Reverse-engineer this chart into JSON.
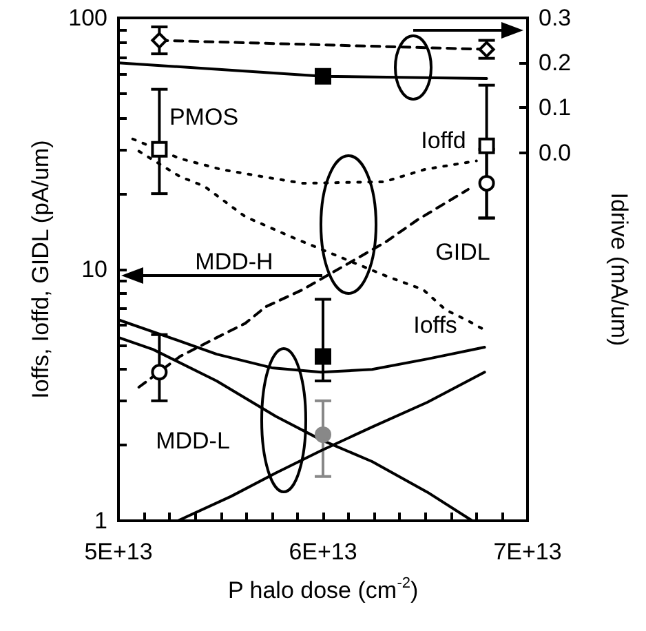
{
  "chart_data": {
    "type": "line",
    "xlabel": "P halo dose (cm$^{-2}$)",
    "ylabel": "Ioffs, Ioffd, GIDL (pA/um)",
    "y2label": "Idrive (mA/um)",
    "xlim": [
      50000000000000.0,
      70000000000000.0
    ],
    "xticks": [
      {
        "value": 50000000000000.0,
        "label": "5E+13"
      },
      {
        "value": 51250000000000.0,
        "label": null
      },
      {
        "value": 52500000000000.0,
        "label": null
      },
      {
        "value": 53750000000000.0,
        "label": null
      },
      {
        "value": 55000000000000.0,
        "label": null
      },
      {
        "value": 56250000000000.0,
        "label": null
      },
      {
        "value": 57500000000000.0,
        "label": null
      },
      {
        "value": 58750000000000.0,
        "label": null
      },
      {
        "value": 60000000000000.0,
        "label": "6E+13"
      },
      {
        "value": 61250000000000.0,
        "label": null
      },
      {
        "value": 62500000000000.0,
        "label": null
      },
      {
        "value": 63750000000000.0,
        "label": null
      },
      {
        "value": 65000000000000.0,
        "label": null
      },
      {
        "value": 66250000000000.0,
        "label": null
      },
      {
        "value": 67500000000000.0,
        "label": null
      },
      {
        "value": 68750000000000.0,
        "label": null
      },
      {
        "value": 70000000000000.0,
        "label": "7E+13"
      }
    ],
    "ylim": [
      1,
      100
    ],
    "yticks": [
      1,
      {
        "value": 2,
        "label": null
      },
      {
        "value": 3,
        "label": null
      },
      {
        "value": 4,
        "label": null
      },
      {
        "value": 5,
        "label": null
      },
      {
        "value": 6,
        "label": null
      },
      {
        "value": 7,
        "label": null
      },
      {
        "value": 8,
        "label": null
      },
      {
        "value": 9,
        "label": null
      },
      10,
      {
        "value": 20,
        "label": null
      },
      {
        "value": 30,
        "label": null
      },
      {
        "value": 40,
        "label": null
      },
      {
        "value": 50,
        "label": null
      },
      {
        "value": 60,
        "label": null
      },
      {
        "value": 70,
        "label": null
      },
      {
        "value": 80,
        "label": null
      },
      {
        "value": 90,
        "label": null
      },
      100
    ],
    "y2lim": [
      -0.82,
      0.3
    ],
    "y2ticks": [
      {
        "value": 0,
        "label": "0.0"
      },
      0.1,
      0.2,
      0.3
    ],
    "log": "y",
    "series": [
      {
        "axis": "y2",
        "color": "#000000",
        "marker": "none",
        "line_style": "dashed",
        "x": [
          52000000000000.0,
          68000000000000.0
        ],
        "values": [
          0.25,
          0.23
        ]
      },
      {
        "type": "scatter",
        "axis": "y2",
        "color": "#000000",
        "marker": "diamond",
        "x": [
          52000000000000.0,
          68000000000000.0
        ],
        "values": [
          0.25,
          0.23
        ],
        "errors": [
          0.03,
          0.02
        ]
      },
      {
        "axis": "y2",
        "color": "#000000",
        "marker": "none",
        "line_style": "solid",
        "x": [
          50000000000000.0,
          60000000000000.0,
          68000000000000.0
        ],
        "values": [
          0.2,
          0.17,
          0.165
        ]
      },
      {
        "axis": "y2",
        "color": "#000000",
        "marker": "square",
        "x": [
          60000000000000.0
        ],
        "values": [
          0.17
        ],
        "errors": [
          0.01
        ]
      },
      {
        "color": "#000000",
        "marker": "none",
        "line_style": "dotted",
        "x": [
          50700000000000.0,
          53000000000000.0,
          55000000000000.0,
          57000000000000.0,
          59000000000000.0,
          63000000000000.0,
          65000000000000.0,
          67500000000000.0
        ],
        "values": [
          33,
          27.6,
          25,
          23.4,
          22,
          22.3,
          25,
          27
        ]
      },
      {
        "color": "#000000",
        "marker": "none",
        "line_style": "dotted",
        "x": [
          51000000000000.0,
          53000000000000.0,
          54200000000000.0,
          56200000000000.0,
          58600000000000.0,
          63100000000000.0,
          64900000000000.0,
          66000000000000.0,
          67000000000000.0,
          67800000000000.0
        ],
        "values": [
          29.5,
          23.4,
          21.4,
          16.2,
          13.3,
          9.4,
          8.3,
          6.9,
          6.3,
          5.8
        ]
      },
      {
        "color": "#000000",
        "marker": "none",
        "line_style": "dashed",
        "x": [
          51000000000000.0,
          53000000000000.0,
          54800000000000.0,
          56200000000000.0,
          57200000000000.0,
          59000000000000.0,
          63100000000000.0,
          64600000000000.0,
          67100000000000.0
        ],
        "values": [
          3.4,
          4.5,
          5.35,
          6.1,
          7.1,
          8.3,
          12.9,
          15.7,
          20.8
        ]
      },
      {
        "type": "scatter",
        "color": "#000000",
        "marker": "square",
        "x": [
          52000000000000.0,
          68000000000000.0
        ],
        "values": [
          30,
          31
        ],
        "errors": [
          [
            20,
            52
          ],
          [
            16,
            54
          ]
        ]
      },
      {
        "type": "scatter",
        "color": "#000000",
        "marker": "circle",
        "x": [
          52000000000000.0,
          68000000000000.0
        ],
        "values": [
          3.9,
          22
        ],
        "errors": [
          [
            3,
            5.5
          ],
          [
            16,
            30
          ]
        ]
      },
      {
        "color": "#000000",
        "marker": "none",
        "line_style": "solid",
        "x": [
          50000000000000.0,
          52100000000000.0,
          54800000000000.0,
          57500000000000.0,
          59900000000000.0,
          62400000000000.0,
          65100000000000.0,
          67900000000000.0
        ],
        "values": [
          6.3,
          5.5,
          4.6,
          4.06,
          3.9,
          4,
          4.4,
          4.9
        ]
      },
      {
        "color": "#000000",
        "marker": "none",
        "line_style": "solid",
        "x": [
          50000000000000.0,
          51700000000000.0,
          54800000000000.0,
          57700000000000.0,
          59900000000000.0,
          62400000000000.0,
          65100000000000.0,
          67300000000000.0
        ],
        "values": [
          5.36,
          4.8,
          3.6,
          2.6,
          2.1,
          1.72,
          1.3,
          1
        ]
      },
      {
        "color": "#000000",
        "marker": "none",
        "line_style": "solid",
        "x": [
          52900000000000.0,
          55500000000000.0,
          57700000000000.0,
          59900000000000.0,
          62400000000000.0,
          65100000000000.0,
          67900000000000.0
        ],
        "values": [
          1,
          1.25,
          1.55,
          1.9,
          2.36,
          2.96,
          3.9
        ]
      },
      {
        "color": "#000000",
        "marker": "square",
        "x": [
          60000000000000.0
        ],
        "values": [
          4.5
        ],
        "errors": [
          [
            3.6,
            7.6
          ]
        ]
      },
      {
        "color": "#888888",
        "marker": "circle",
        "x": [
          60000000000000.0
        ],
        "values": [
          2.2
        ],
        "errors": [
          [
            1.5,
            3
          ]
        ]
      }
    ],
    "annotations": [
      "PMOS",
      "Ioffd",
      "GIDL",
      "Ioffs",
      "MDD-H",
      "MDD-L"
    ]
  }
}
